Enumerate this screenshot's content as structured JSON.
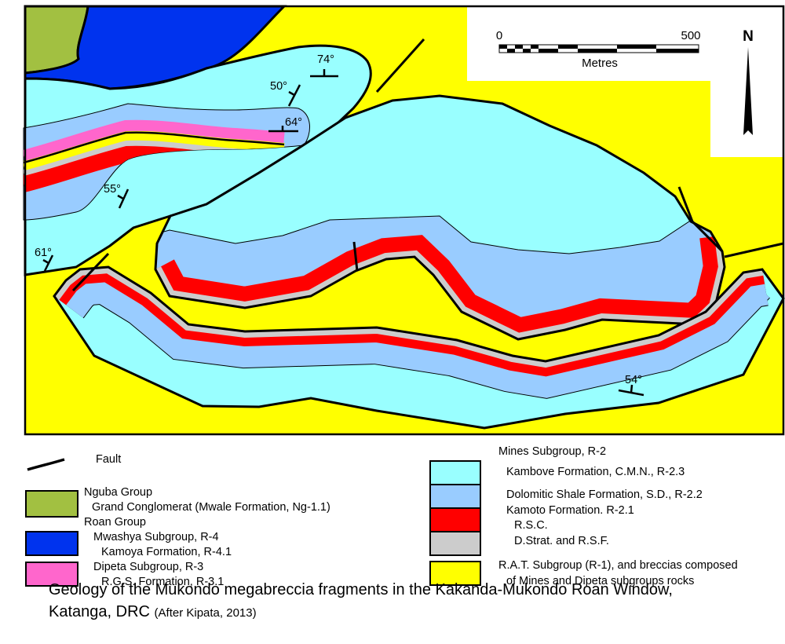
{
  "title": "Geology of the Mukondo megabreccia fragments in the Kakanda-Mukondo Roan Window,",
  "title_line2": "Katanga, DRC",
  "source": "(After Kipata, 2013)",
  "scale_bar": {
    "start": "0",
    "end": "500",
    "unit": "Metres"
  },
  "north_label": "N",
  "dip_labels": [
    "74°",
    "50°",
    "64°",
    "55°",
    "61°",
    "54°"
  ],
  "colors": {
    "ng": "#a2c041",
    "r4": "#0033ee",
    "r3": "#ff66cc",
    "r23": "#99ffff",
    "r22": "#99ccff",
    "rsc": "#ff0000",
    "dstrat": "#cccccc",
    "r1": "#ffff00"
  },
  "legend": {
    "fault": "Fault",
    "nguba_group": "Nguba Group",
    "grand_conglomerat": "Grand Conglomerat (Mwale Formation, Ng-1.1)",
    "roan_group": "Roan Group",
    "mwashya": "Mwashya Subgroup, R-4",
    "kamoya": "Kamoya Formation, R-4.1",
    "dipeta": "Dipeta Subgroup, R-3",
    "rgs": "R.G.S. Formation, R-3.1",
    "mines": "Mines Subgroup, R-2",
    "kambove": "Kambove Formation, C.M.N., R-2.3",
    "dolomitic": "Dolomitic Shale Formation, S.D., R-2.2",
    "kamoto": "Kamoto Formation. R-2.1",
    "rsc": "R.S.C.",
    "dstrat": "D.Strat. and R.S.F.",
    "rat_1": "R.A.T. Subgroup (R-1), and breccias composed",
    "rat_2": "of Mines and Dipeta subgroups rocks"
  }
}
